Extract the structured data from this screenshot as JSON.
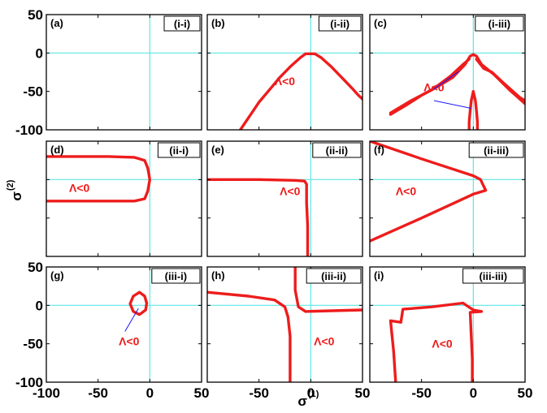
{
  "figure": {
    "xlabel_base": "σ",
    "xlabel_sup": "(1)",
    "ylabel_base": "σ",
    "ylabel_sup": "(2)",
    "x_ticks": [
      -100,
      -50,
      0,
      50
    ],
    "y_ticks": [
      50,
      0,
      -50,
      -100
    ],
    "colors": {
      "curve": "#ee1c1c",
      "axis_line": "#5ee6e6",
      "frame": "#000000",
      "arrow": "#1a1aff",
      "annotation": "#ee1c1c"
    }
  },
  "chart_data": [
    {
      "type": "line",
      "panel": "(a)",
      "case": "(i-i)",
      "xlim": [
        -100,
        50
      ],
      "ylim": [
        -100,
        50
      ],
      "series": [],
      "annotations": []
    },
    {
      "type": "line",
      "panel": "(b)",
      "case": "(i-ii)",
      "xlim": [
        -100,
        50
      ],
      "ylim": [
        -100,
        50
      ],
      "series": [
        {
          "points": [
            [
              -68,
              -100
            ],
            [
              -64,
              -92
            ],
            [
              -58,
              -80
            ],
            [
              -50,
              -64
            ],
            [
              -40,
              -48
            ],
            [
              -30,
              -32
            ],
            [
              -20,
              -18
            ],
            [
              -10,
              -6
            ],
            [
              -5,
              -1
            ],
            [
              4,
              -1
            ],
            [
              10,
              -6
            ],
            [
              20,
              -18
            ],
            [
              30,
              -32
            ],
            [
              40,
              -46
            ],
            [
              46,
              -55
            ],
            [
              50,
              -60
            ]
          ]
        }
      ],
      "annotations": [
        {
          "text": "Λ<0",
          "x": -35,
          "y": -42
        }
      ]
    },
    {
      "type": "line",
      "panel": "(c)",
      "case": "(i-iii)",
      "xlim": [
        -100,
        50
      ],
      "ylim": [
        -100,
        50
      ],
      "series": [
        {
          "points": [
            [
              -80,
              -80
            ],
            [
              -65,
              -68
            ],
            [
              -50,
              -55
            ],
            [
              -35,
              -44
            ],
            [
              -20,
              -32
            ],
            [
              -8,
              -15
            ],
            [
              -3,
              -4
            ],
            [
              0,
              -2
            ],
            [
              3,
              -4
            ],
            [
              8,
              -15
            ],
            [
              20,
              -28
            ],
            [
              35,
              -48
            ],
            [
              50,
              -66
            ]
          ]
        },
        {
          "points": [
            [
              -80,
              -78
            ],
            [
              -60,
              -62
            ],
            [
              -40,
              -48
            ],
            [
              -22,
              -30
            ],
            [
              -10,
              -15
            ],
            [
              -4,
              -8
            ]
          ]
        },
        {
          "points": [
            [
              3,
              -8
            ],
            [
              10,
              -20
            ],
            [
              18,
              -25
            ],
            [
              30,
              -40
            ],
            [
              45,
              -58
            ],
            [
              50,
              -62
            ]
          ]
        },
        {
          "points": [
            [
              0,
              -50
            ],
            [
              -2,
              -62
            ],
            [
              -3,
              -75
            ],
            [
              -4,
              -90
            ],
            [
              -4,
              -100
            ]
          ]
        },
        {
          "points": [
            [
              0,
              -50
            ],
            [
              2,
              -62
            ],
            [
              3,
              -75
            ],
            [
              4,
              -90
            ],
            [
              4,
              -100
            ]
          ]
        }
      ],
      "annotations": [
        {
          "text": "Λ<0",
          "x": -48,
          "y": -50
        }
      ]
    },
    {
      "type": "line",
      "panel": "(d)",
      "case": "(ii-i)",
      "xlim": [
        -100,
        50
      ],
      "ylim": [
        -100,
        50
      ],
      "series": [
        {
          "points": [
            [
              -100,
              30
            ],
            [
              -40,
              30
            ],
            [
              -15,
              29
            ],
            [
              -5,
              25
            ],
            [
              -2,
              15
            ],
            [
              0,
              0
            ],
            [
              -2,
              -15
            ],
            [
              -5,
              -25
            ],
            [
              -15,
              -28
            ],
            [
              -40,
              -28
            ],
            [
              -100,
              -28
            ]
          ]
        }
      ],
      "annotations": [
        {
          "text": "Λ<0",
          "x": -78,
          "y": -16
        }
      ]
    },
    {
      "type": "line",
      "panel": "(e)",
      "case": "(ii-ii)",
      "xlim": [
        -100,
        50
      ],
      "ylim": [
        -100,
        50
      ],
      "series": [
        {
          "points": [
            [
              -100,
              0
            ],
            [
              -50,
              0
            ],
            [
              -15,
              -1
            ],
            [
              -6,
              -2
            ],
            [
              -4,
              -6
            ],
            [
              -4,
              -30
            ],
            [
              -3,
              -60
            ],
            [
              -3,
              -100
            ]
          ]
        }
      ],
      "annotations": [
        {
          "text": "Λ<0",
          "x": -30,
          "y": -20
        }
      ]
    },
    {
      "type": "line",
      "panel": "(f)",
      "case": "(ii-iii)",
      "xlim": [
        -100,
        50
      ],
      "ylim": [
        -100,
        50
      ],
      "series": [
        {
          "points": [
            [
              -100,
              50
            ],
            [
              -50,
              27
            ],
            [
              0,
              5
            ],
            [
              7,
              0
            ],
            [
              12,
              -14
            ],
            [
              0,
              -19
            ],
            [
              -50,
              -50
            ],
            [
              -100,
              -80
            ]
          ]
        }
      ],
      "annotations": [
        {
          "text": "Λ<0",
          "x": -75,
          "y": -20
        }
      ]
    },
    {
      "type": "line",
      "panel": "(g)",
      "case": "(iii-i)",
      "xlim": [
        -100,
        50
      ],
      "ylim": [
        -100,
        50
      ],
      "series": [
        {
          "points": [
            [
              -10,
              17
            ],
            [
              -16,
              12
            ],
            [
              -19,
              2
            ],
            [
              -16,
              -8
            ],
            [
              -10,
              -12
            ],
            [
              -4,
              -6
            ],
            [
              -3,
              3
            ],
            [
              -5,
              12
            ],
            [
              -10,
              17
            ]
          ]
        }
      ],
      "annotations": [
        {
          "text": "Λ<0",
          "x": -30,
          "y": -52
        }
      ]
    },
    {
      "type": "line",
      "panel": "(h)",
      "case": "(iii-ii)",
      "xlim": [
        -100,
        50
      ],
      "ylim": [
        -100,
        50
      ],
      "series": [
        {
          "points": [
            [
              -100,
              17
            ],
            [
              -60,
              12
            ],
            [
              -35,
              7
            ],
            [
              -25,
              -2
            ],
            [
              -22,
              -15
            ],
            [
              -20,
              -40
            ],
            [
              -20,
              -70
            ],
            [
              -20,
              -100
            ]
          ]
        },
        {
          "points": [
            [
              -15,
              50
            ],
            [
              -15,
              20
            ],
            [
              -12,
              -2
            ],
            [
              -5,
              -8
            ],
            [
              20,
              -7
            ],
            [
              50,
              -6
            ]
          ]
        }
      ],
      "annotations": [
        {
          "text": "Λ<0",
          "x": 3,
          "y": -52
        }
      ]
    },
    {
      "type": "line",
      "panel": "(i)",
      "case": "(iii-iii)",
      "xlim": [
        -100,
        50
      ],
      "ylim": [
        -100,
        50
      ],
      "series": [
        {
          "points": [
            [
              -75,
              -100
            ],
            [
              -77,
              -60
            ],
            [
              -80,
              -20
            ],
            [
              -70,
              -22
            ],
            [
              -68,
              -5
            ],
            [
              -40,
              -2
            ],
            [
              -10,
              3
            ],
            [
              0,
              -6
            ],
            [
              8,
              -8
            ],
            [
              -3,
              -9
            ],
            [
              -2,
              -40
            ],
            [
              -1,
              -70
            ],
            [
              -1,
              -100
            ]
          ]
        }
      ],
      "annotations": [
        {
          "text": "Λ<0",
          "x": -40,
          "y": -55
        }
      ]
    }
  ]
}
